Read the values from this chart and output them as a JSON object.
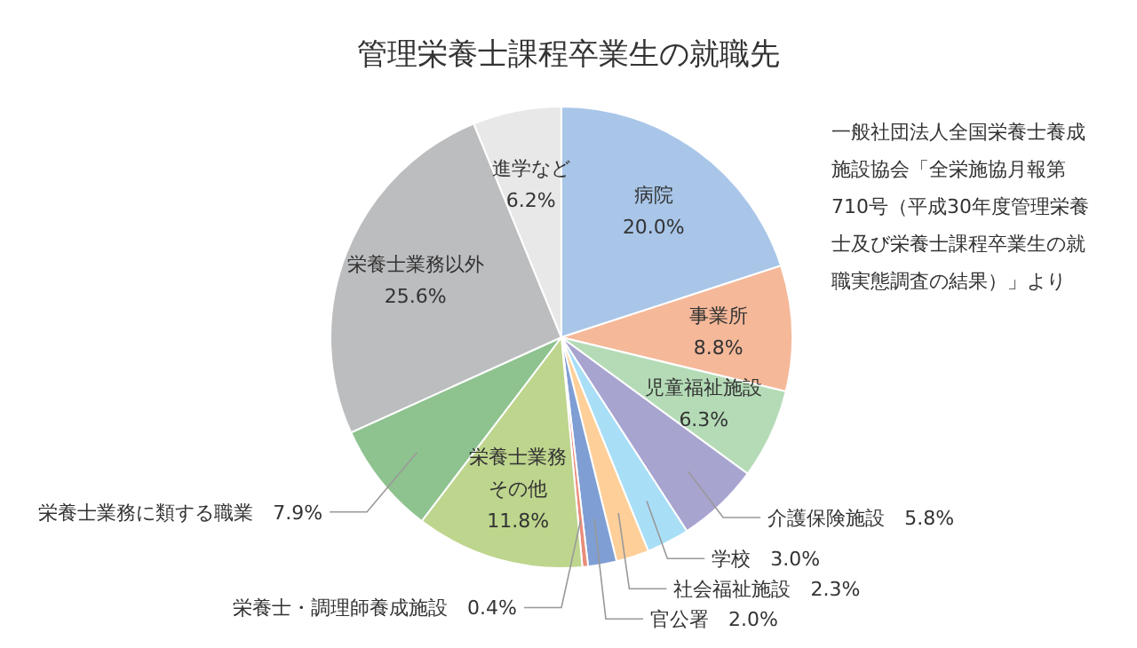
{
  "chart_data": {
    "type": "pie",
    "title": "管理栄養士課程卒業生の就職先",
    "categories": [
      "病院",
      "事業所",
      "児童福祉施設",
      "介護保険施設",
      "学校",
      "社会福祉施設",
      "官公署",
      "栄養士・調理師養成施設",
      "栄養士業務その他",
      "栄養士業務に類する職業",
      "栄養士業務以外",
      "進学など"
    ],
    "values": [
      20.0,
      8.8,
      6.3,
      5.8,
      3.0,
      2.3,
      2.0,
      0.4,
      11.8,
      7.9,
      25.6,
      6.2
    ],
    "value_labels": [
      "20.0%",
      "8.8%",
      "6.3%",
      "5.8%",
      "3.0%",
      "2.3%",
      "2.0%",
      "0.4%",
      "11.8%",
      "7.9%",
      "25.6%",
      "6.2%"
    ],
    "colors": [
      "#a9c6e9",
      "#f5b899",
      "#b4dbb6",
      "#a8a4d0",
      "#a9def7",
      "#ffcf99",
      "#7f9ed4",
      "#e98c7a",
      "#bed58d",
      "#8ec38f",
      "#bcbdbf",
      "#e8e8e8"
    ],
    "annotations": [
      "一般社団法人全国栄養士養成施設協会「全栄施協月報第710号（平成30年度管理栄養士及び栄養士課程卒業生の就職実態調査の結果）」より"
    ]
  }
}
